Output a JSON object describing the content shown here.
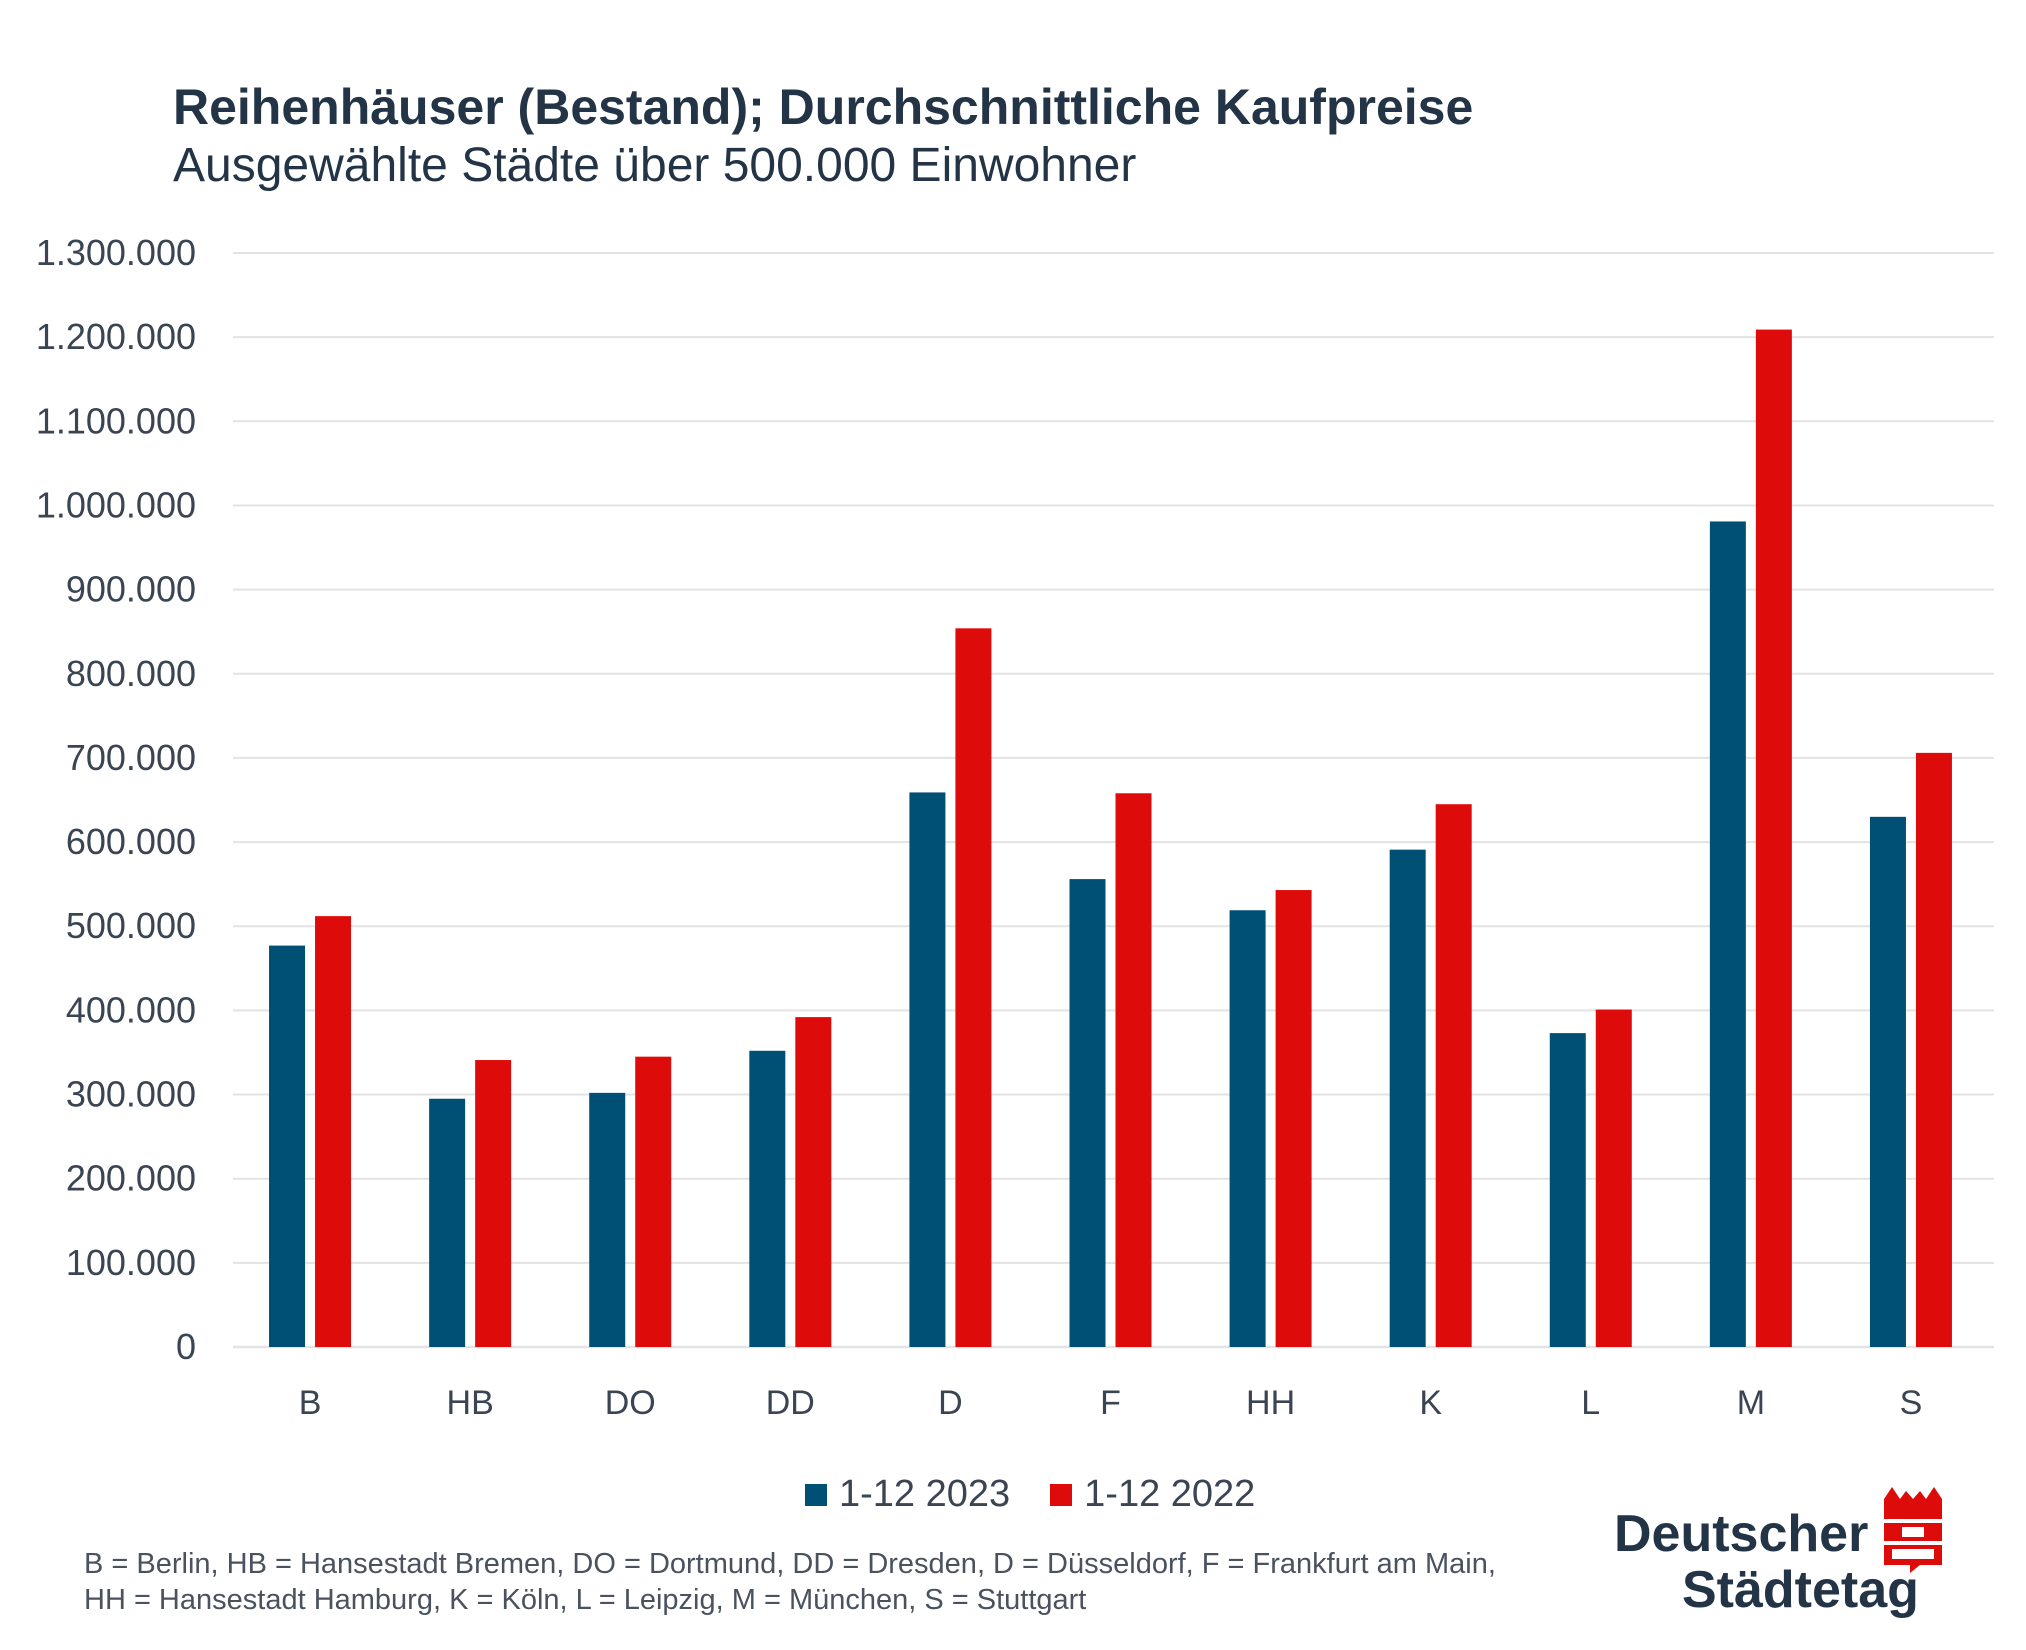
{
  "title": "Reihenhäuser (Bestand); Durchschnittliche Kaufpreise",
  "subtitle": "Ausgewählte Städte über 500.000 Einwohner",
  "colors": {
    "series_2023": "#004f75",
    "series_2022": "#de0b0b",
    "grid": "#e3e3e3",
    "text": "#233446"
  },
  "chart_data": {
    "type": "bar",
    "title": "Reihenhäuser (Bestand); Durchschnittliche Kaufpreise",
    "subtitle": "Ausgewählte Städte über 500.000 Einwohner",
    "categories": [
      "B",
      "HB",
      "DO",
      "DD",
      "D",
      "F",
      "HH",
      "K",
      "L",
      "M",
      "S"
    ],
    "series": [
      {
        "name": "1-12 2023",
        "color": "#004f75",
        "values": [
          477000,
          295000,
          302000,
          352000,
          659000,
          556000,
          519000,
          591000,
          373000,
          981000,
          630000
        ]
      },
      {
        "name": "1-12 2022",
        "color": "#de0b0b",
        "values": [
          512000,
          341000,
          345000,
          392000,
          854000,
          658000,
          543000,
          645000,
          401000,
          1209000,
          706000
        ]
      }
    ],
    "ylim": [
      0,
      1300000
    ],
    "yticks": [
      "0",
      "100.000",
      "200.000",
      "300.000",
      "400.000",
      "500.000",
      "600.000",
      "700.000",
      "800.000",
      "900.000",
      "1.000.000",
      "1.100.000",
      "1.200.000",
      "1.300.000"
    ],
    "grid": true,
    "legend": "bottom"
  },
  "footnote": {
    "line1": "B = Berlin, HB = Hansestadt Bremen, DO = Dortmund, DD = Dresden, D = Düsseldorf, F = Frankfurt am Main,",
    "line2": "HH = Hansestadt Hamburg, K = Köln, L = Leipzig, M = München, S = Stuttgart"
  },
  "logo": {
    "line1": "Deutscher",
    "line2": "Städtetag",
    "icon": "city-crown-icon"
  }
}
